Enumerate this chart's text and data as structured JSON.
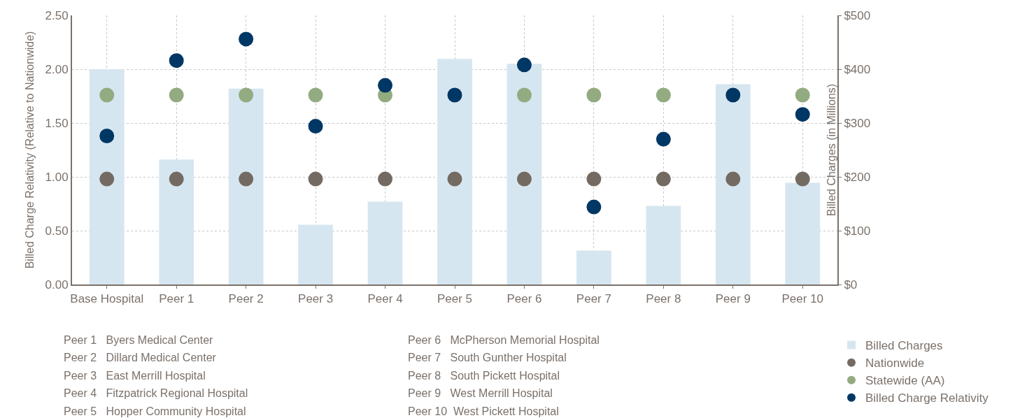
{
  "chart_data": {
    "type": "bar",
    "categories": [
      "Base Hospital",
      "Peer 1",
      "Peer 2",
      "Peer 3",
      "Peer 4",
      "Peer 5",
      "Peer 6",
      "Peer 7",
      "Peer 8",
      "Peer 9",
      "Peer 10"
    ],
    "ylabel": "Billed Charge Relativity (Relative to Nationwide)",
    "y2label": "Billed Charges (in Millions)",
    "ylim": [
      0,
      2.5
    ],
    "yticks": [
      {
        "value": 0,
        "label": "0.00"
      },
      {
        "value": 0.5,
        "label": "0.50"
      },
      {
        "value": 1,
        "label": "1.00"
      },
      {
        "value": 1.5,
        "label": "1.50"
      },
      {
        "value": 2,
        "label": "2.00"
      },
      {
        "value": 2.5,
        "label": "2.50"
      }
    ],
    "y2lim": [
      0,
      500
    ],
    "y2ticks": [
      {
        "value": 0,
        "label": "$0"
      },
      {
        "value": 100,
        "label": "$100"
      },
      {
        "value": 200,
        "label": "$200"
      },
      {
        "value": 300,
        "label": "$300"
      },
      {
        "value": 400,
        "label": "$400"
      },
      {
        "value": 500,
        "label": "$500"
      }
    ],
    "series": [
      {
        "name": "Billed Charges",
        "axis": "y2",
        "color": "#d6e6f0",
        "values": [
          400,
          232,
          364,
          111,
          154,
          419,
          410,
          63,
          146,
          372,
          189
        ]
      },
      {
        "name": "Nationwide",
        "type": "scatter",
        "color": "#736a62",
        "values": [
          0.98,
          0.98,
          0.98,
          0.98,
          0.98,
          0.98,
          0.98,
          0.98,
          0.98,
          0.98,
          0.98
        ]
      },
      {
        "name": "Statewide (AA)",
        "type": "scatter",
        "color": "#93ab80",
        "values": [
          1.76,
          1.76,
          1.76,
          1.76,
          1.76,
          null,
          1.76,
          1.76,
          1.76,
          null,
          1.76
        ]
      },
      {
        "name": "Billed Charge Relativity",
        "type": "scatter",
        "color": "#003764",
        "values": [
          1.38,
          2.08,
          2.28,
          1.47,
          1.85,
          1.76,
          2.04,
          0.72,
          1.35,
          1.76,
          1.58
        ]
      }
    ],
    "marker": "circle",
    "grid": true,
    "legend": "bottom right",
    "annotations": [
      "Peer 1   Byers Medical Center",
      "Peer 2   Dillard Medical Center",
      "Peer 3   East Merrill Hospital",
      "Peer 4   Fitzpatrick Regional Hospital",
      "Peer 5   Hopper Community Hospital",
      "Peer 6   McPherson Memorial Hospital",
      "Peer 7   South Gunther Hospital",
      "Peer 8   South Pickett Hospital",
      "Peer 9   West Merrill Hospital",
      "Peer 10  West Pickett Hospital"
    ]
  }
}
